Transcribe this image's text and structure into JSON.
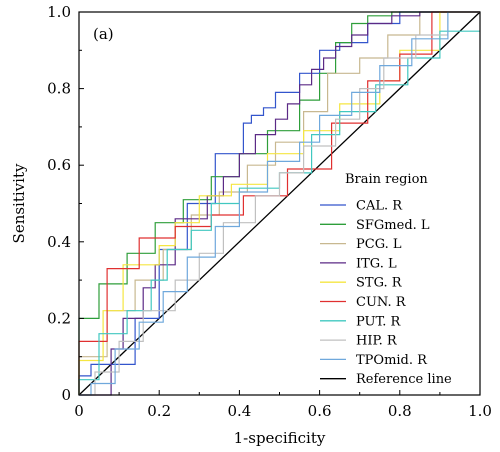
{
  "chart_data": {
    "type": "line",
    "panel_label": "(a)",
    "xlabel": "1-specificity",
    "ylabel": "Sensitivity",
    "xlim": [
      0,
      1
    ],
    "ylim": [
      0,
      1
    ],
    "x_ticks": [
      "0",
      "0.2",
      "0.4",
      "0.6",
      "0.8",
      "1.0"
    ],
    "y_ticks": [
      "0",
      "0.2",
      "0.4",
      "0.6",
      "0.8",
      "1.0"
    ],
    "legend_title": "Brain region",
    "legend_position": "lower-right",
    "reference_line": {
      "name": "Reference line",
      "color": "#000000",
      "x": [
        0,
        1
      ],
      "y": [
        0,
        1
      ]
    },
    "series": [
      {
        "name": "CAL. R",
        "color": "#3355cc",
        "x": [
          0,
          0,
          0.03,
          0.03,
          0.14,
          0.14,
          0.2,
          0.2,
          0.27,
          0.27,
          0.34,
          0.34,
          0.41,
          0.41,
          0.43,
          0.43,
          0.46,
          0.46,
          0.49,
          0.49,
          0.55,
          0.55,
          0.6,
          0.6,
          0.65,
          0.65,
          0.72,
          0.72,
          0.8,
          0.8,
          1.0
        ],
        "y": [
          0,
          0.05,
          0.05,
          0.08,
          0.08,
          0.2,
          0.2,
          0.38,
          0.38,
          0.5,
          0.5,
          0.63,
          0.63,
          0.71,
          0.71,
          0.73,
          0.73,
          0.75,
          0.75,
          0.79,
          0.79,
          0.84,
          0.84,
          0.9,
          0.9,
          0.92,
          0.92,
          0.97,
          0.97,
          1.0,
          1.0
        ]
      },
      {
        "name": "SFGmed. L",
        "color": "#2e9e3a",
        "x": [
          0,
          0,
          0.05,
          0.05,
          0.12,
          0.12,
          0.19,
          0.19,
          0.26,
          0.26,
          0.33,
          0.33,
          0.4,
          0.4,
          0.47,
          0.47,
          0.55,
          0.55,
          0.6,
          0.6,
          0.64,
          0.64,
          0.68,
          0.68,
          0.72,
          0.72,
          0.78,
          0.78,
          1.0
        ],
        "y": [
          0,
          0.2,
          0.2,
          0.29,
          0.29,
          0.37,
          0.37,
          0.45,
          0.45,
          0.51,
          0.51,
          0.57,
          0.57,
          0.63,
          0.63,
          0.69,
          0.69,
          0.77,
          0.77,
          0.84,
          0.84,
          0.92,
          0.92,
          0.97,
          0.97,
          0.99,
          0.99,
          1.0,
          1.0
        ]
      },
      {
        "name": "PCG. L",
        "color": "#c8b890",
        "x": [
          0,
          0,
          0.07,
          0.07,
          0.14,
          0.14,
          0.21,
          0.21,
          0.28,
          0.28,
          0.35,
          0.35,
          0.42,
          0.42,
          0.49,
          0.49,
          0.56,
          0.56,
          0.62,
          0.62,
          0.7,
          0.7,
          0.77,
          0.77,
          0.85,
          0.85,
          1.0
        ],
        "y": [
          0,
          0.1,
          0.1,
          0.22,
          0.22,
          0.3,
          0.3,
          0.38,
          0.38,
          0.47,
          0.47,
          0.53,
          0.53,
          0.6,
          0.6,
          0.66,
          0.66,
          0.74,
          0.74,
          0.84,
          0.84,
          0.88,
          0.88,
          0.94,
          0.94,
          1.0,
          1.0
        ]
      },
      {
        "name": "ITG. L",
        "color": "#5b2a86",
        "x": [
          0,
          0.08,
          0.08,
          0.11,
          0.11,
          0.16,
          0.16,
          0.19,
          0.19,
          0.24,
          0.24,
          0.32,
          0.32,
          0.36,
          0.36,
          0.4,
          0.4,
          0.44,
          0.44,
          0.49,
          0.49,
          0.52,
          0.52,
          0.55,
          0.55,
          0.58,
          0.58,
          0.61,
          0.61,
          0.64,
          0.64,
          0.68,
          0.68,
          0.72,
          0.72,
          0.78,
          0.78,
          0.85,
          0.85,
          1.0
        ],
        "y": [
          0,
          0,
          0.12,
          0.12,
          0.2,
          0.2,
          0.28,
          0.28,
          0.34,
          0.34,
          0.46,
          0.46,
          0.52,
          0.52,
          0.57,
          0.57,
          0.63,
          0.63,
          0.68,
          0.68,
          0.72,
          0.72,
          0.76,
          0.76,
          0.81,
          0.81,
          0.85,
          0.85,
          0.88,
          0.88,
          0.91,
          0.91,
          0.94,
          0.94,
          0.97,
          0.97,
          0.99,
          0.99,
          1.0,
          1.0
        ]
      },
      {
        "name": "STG. R",
        "color": "#f5e642",
        "x": [
          0,
          0,
          0.06,
          0.06,
          0.11,
          0.11,
          0.2,
          0.2,
          0.24,
          0.24,
          0.3,
          0.3,
          0.38,
          0.38,
          0.47,
          0.47,
          0.56,
          0.56,
          0.65,
          0.65,
          0.75,
          0.75,
          0.8,
          0.8,
          0.9,
          0.9,
          1.0
        ],
        "y": [
          0,
          0.09,
          0.09,
          0.22,
          0.22,
          0.34,
          0.34,
          0.39,
          0.39,
          0.45,
          0.45,
          0.52,
          0.52,
          0.55,
          0.55,
          0.63,
          0.63,
          0.69,
          0.69,
          0.76,
          0.76,
          0.82,
          0.82,
          0.9,
          0.9,
          1.0,
          1.0
        ]
      },
      {
        "name": "CUN. R",
        "color": "#e03030",
        "x": [
          0,
          0,
          0.07,
          0.07,
          0.15,
          0.15,
          0.24,
          0.24,
          0.33,
          0.33,
          0.41,
          0.41,
          0.52,
          0.52,
          0.63,
          0.63,
          0.72,
          0.72,
          0.8,
          0.8,
          0.88,
          0.88,
          1.0
        ],
        "y": [
          0,
          0.14,
          0.14,
          0.33,
          0.33,
          0.41,
          0.41,
          0.44,
          0.44,
          0.47,
          0.47,
          0.52,
          0.52,
          0.59,
          0.59,
          0.71,
          0.71,
          0.82,
          0.82,
          0.89,
          0.89,
          1.0,
          1.0
        ]
      },
      {
        "name": "PUT. R",
        "color": "#40c8c0",
        "x": [
          0,
          0,
          0.05,
          0.05,
          0.12,
          0.12,
          0.18,
          0.18,
          0.22,
          0.22,
          0.28,
          0.28,
          0.33,
          0.33,
          0.4,
          0.4,
          0.5,
          0.5,
          0.58,
          0.58,
          0.65,
          0.65,
          0.74,
          0.74,
          0.82,
          0.82,
          0.9,
          0.9,
          1.0
        ],
        "y": [
          0,
          0.04,
          0.04,
          0.16,
          0.16,
          0.22,
          0.22,
          0.3,
          0.3,
          0.38,
          0.38,
          0.43,
          0.43,
          0.5,
          0.5,
          0.54,
          0.54,
          0.58,
          0.58,
          0.68,
          0.68,
          0.74,
          0.74,
          0.81,
          0.81,
          0.88,
          0.88,
          0.95,
          0.95
        ]
      },
      {
        "name": "HIP. R",
        "color": "#c0c0c0",
        "x": [
          0,
          0.04,
          0.04,
          0.1,
          0.1,
          0.16,
          0.16,
          0.24,
          0.24,
          0.3,
          0.3,
          0.36,
          0.36,
          0.44,
          0.44,
          0.5,
          0.5,
          0.56,
          0.56,
          0.64,
          0.64,
          0.7,
          0.7,
          0.76,
          0.76,
          0.84,
          0.84,
          0.92,
          0.92,
          1.0
        ],
        "y": [
          0,
          0,
          0.06,
          0.06,
          0.14,
          0.14,
          0.22,
          0.22,
          0.3,
          0.3,
          0.37,
          0.37,
          0.45,
          0.45,
          0.52,
          0.52,
          0.58,
          0.58,
          0.65,
          0.65,
          0.72,
          0.72,
          0.8,
          0.8,
          0.88,
          0.88,
          0.94,
          0.94,
          1.0,
          1.0
        ]
      },
      {
        "name": "TPOmid. R",
        "color": "#6fa8dc",
        "x": [
          0,
          0.03,
          0.03,
          0.09,
          0.09,
          0.15,
          0.15,
          0.21,
          0.21,
          0.27,
          0.27,
          0.34,
          0.34,
          0.4,
          0.4,
          0.47,
          0.47,
          0.55,
          0.55,
          0.6,
          0.6,
          0.68,
          0.68,
          0.75,
          0.75,
          0.83,
          0.83,
          0.92,
          0.92,
          1.0
        ],
        "y": [
          0,
          0,
          0.03,
          0.03,
          0.12,
          0.12,
          0.19,
          0.19,
          0.27,
          0.27,
          0.36,
          0.36,
          0.44,
          0.44,
          0.53,
          0.53,
          0.61,
          0.61,
          0.66,
          0.66,
          0.73,
          0.73,
          0.79,
          0.79,
          0.86,
          0.86,
          0.93,
          0.93,
          1.0,
          1.0
        ]
      }
    ]
  }
}
